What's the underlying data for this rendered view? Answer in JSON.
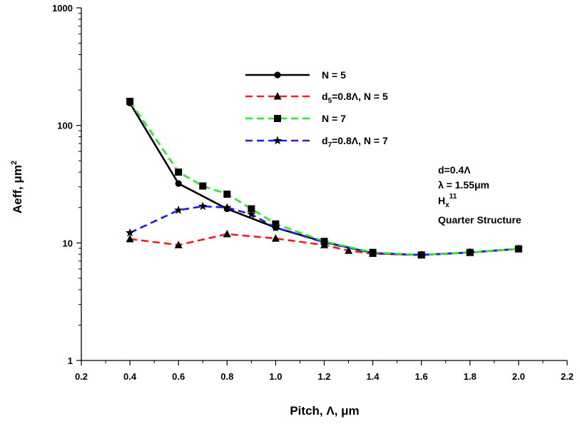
{
  "chart_data": {
    "type": "line",
    "xlabel": "Pitch, Λ, μm",
    "ylabel": "Aeff, μm²",
    "xlim": [
      0.2,
      2.2
    ],
    "ylim": [
      1,
      1000
    ],
    "yscale": "log",
    "grid": false,
    "legend_position": "top-center",
    "xticks": [
      "0.2",
      "0.4",
      "0.6",
      "0.8",
      "1.0",
      "1.2",
      "1.4",
      "1.6",
      "1.8",
      "2.0",
      "2.2"
    ],
    "yticks": [
      "1",
      "10",
      "100",
      "1000"
    ],
    "series": [
      {
        "name": "N = 5",
        "color": "#000000",
        "dash": "solid",
        "marker": "circle",
        "x": [
          0.4,
          0.6,
          0.8,
          1.0,
          1.2,
          1.4,
          1.6,
          1.8,
          2.0
        ],
        "y": [
          155,
          32,
          19.5,
          13.5,
          10.2,
          8.2,
          7.9,
          8.3,
          8.9
        ]
      },
      {
        "name": "d5=0.8Λ, N = 5",
        "name_parts": {
          "main": "d",
          "sub": "5",
          "rest": "=0.8Λ, N = 5"
        },
        "color": "#ff1a1a",
        "dash": "dash",
        "marker": "triangle",
        "x": [
          0.4,
          0.6,
          0.8,
          1.0,
          1.2,
          1.3,
          1.4,
          1.6,
          1.8,
          2.0
        ],
        "y": [
          10.8,
          9.6,
          11.9,
          10.9,
          9.6,
          8.6,
          8.1,
          7.9,
          8.3,
          8.9
        ]
      },
      {
        "name": "N = 7",
        "color": "#22ee22",
        "dash": "dash",
        "marker": "square",
        "x": [
          0.4,
          0.6,
          0.7,
          0.8,
          0.9,
          1.0,
          1.2,
          1.4,
          1.6,
          1.8,
          2.0
        ],
        "y": [
          160,
          40,
          30.5,
          26,
          19.5,
          14.5,
          10.3,
          8.3,
          7.9,
          8.3,
          8.9
        ]
      },
      {
        "name": "d7=0.8Λ, N = 7",
        "name_parts": {
          "main": "d",
          "sub": "7",
          "rest": "=0.8Λ, N = 7"
        },
        "color": "#1a1aff",
        "dash": "dash",
        "marker": "star",
        "x": [
          0.4,
          0.6,
          0.7,
          0.8,
          0.9,
          1.0,
          1.2,
          1.4,
          1.6,
          1.8,
          2.0
        ],
        "y": [
          12.2,
          19,
          20.5,
          20,
          17.5,
          13.5,
          10.1,
          8.2,
          7.9,
          8.3,
          8.9
        ]
      }
    ],
    "annotations": {
      "line1": "d=0.4Λ",
      "line2": "λ = 1.55μm",
      "line3_main": "H",
      "line3_sub": "x",
      "line3_sup": "11",
      "line4": "Quarter Structure"
    }
  }
}
